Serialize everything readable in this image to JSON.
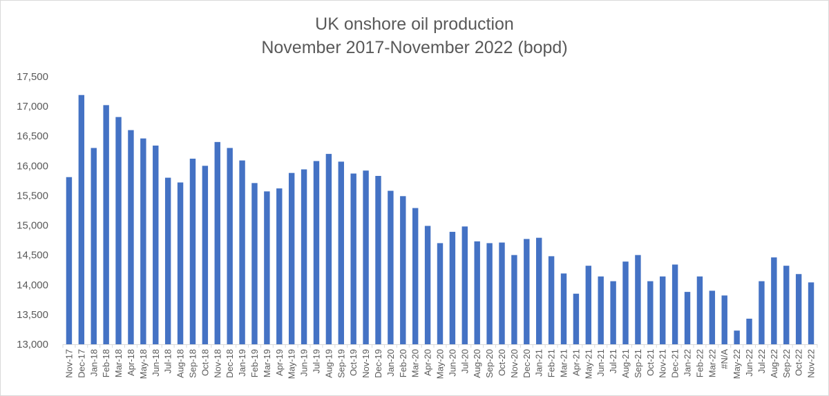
{
  "chart_data": {
    "type": "bar",
    "title": "UK onshore oil production",
    "subtitle": "November 2017-November 2022 (bopd)",
    "xlabel": "",
    "ylabel": "",
    "ylim": [
      13000,
      17500
    ],
    "yticks": [
      13000,
      13500,
      14000,
      14500,
      15000,
      15500,
      16000,
      16500,
      17000,
      17500
    ],
    "ytick_labels": [
      "13,000",
      "13,500",
      "14,000",
      "14,500",
      "15,000",
      "15,500",
      "16,000",
      "16,500",
      "17,000",
      "17,500"
    ],
    "grid": false,
    "legend": "none",
    "bar_color": "#4472c4",
    "categories": [
      "Nov-17",
      "Dec-17",
      "Jan-18",
      "Feb-18",
      "Mar-18",
      "Apr-18",
      "May-18",
      "Jun-18",
      "Jul-18",
      "Aug-18",
      "Sep-18",
      "Oct-18",
      "Nov-18",
      "Dec-18",
      "Jan-19",
      "Feb-19",
      "Mar-19",
      "Apr-19",
      "May-19",
      "Jun-19",
      "Jul-19",
      "Aug-19",
      "Sep-19",
      "Oct-19",
      "Nov-19",
      "Dec-19",
      "Jan-20",
      "Feb-20",
      "Mar-20",
      "Apr-20",
      "May-20",
      "Jun-20",
      "Jul-20",
      "Aug-20",
      "Sep-20",
      "Oct-20",
      "Nov-20",
      "Dec-20",
      "Jan-21",
      "Feb-21",
      "Mar-21",
      "Apr-21",
      "May-21",
      "Jun-21",
      "Jul-21",
      "Aug-21",
      "Sep-21",
      "Oct-21",
      "Nov-21",
      "Dec-21",
      "Jan-22",
      "Feb-22",
      "Mar-22",
      "#N/A",
      "May-22",
      "Jun-22",
      "Jul-22",
      "Aug-22",
      "Sep-22",
      "Oct-22",
      "Nov-22"
    ],
    "values": [
      15810,
      17190,
      16300,
      17020,
      16820,
      16600,
      16460,
      16340,
      15800,
      15720,
      16120,
      16000,
      16400,
      16300,
      16090,
      15710,
      15570,
      15620,
      15880,
      15940,
      16080,
      16200,
      16070,
      15870,
      15920,
      15830,
      15580,
      15490,
      15290,
      14990,
      14700,
      14890,
      14980,
      14730,
      14700,
      14710,
      14500,
      14770,
      14790,
      14480,
      14190,
      13850,
      14320,
      14140,
      14060,
      14390,
      14500,
      14060,
      14140,
      14340,
      13880,
      14140,
      13900,
      13820,
      13230,
      13430,
      14060,
      14460,
      14320,
      14180,
      14040
    ]
  }
}
